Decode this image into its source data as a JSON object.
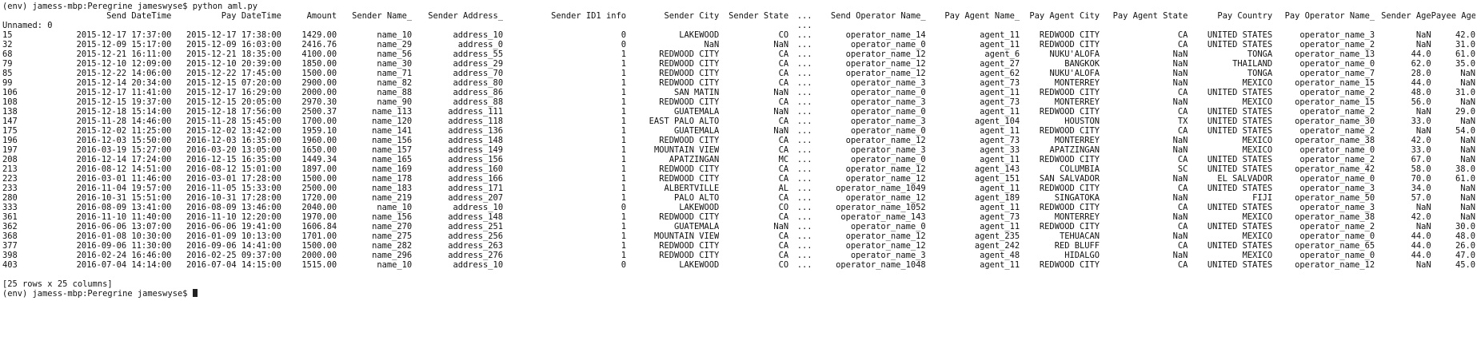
{
  "terminal": {
    "command_line": "(env) jamess-mbp:Peregrine jameswyse$ python aml.py",
    "unnamed_line": "Unnamed: 0",
    "footer": "[25 rows x 25 columns]",
    "next_prompt": "(env) jamess-mbp:Peregrine jameswyse$ "
  },
  "table": {
    "columns": [
      "",
      "Send DateTime",
      "Pay DateTime",
      "Amount",
      "Sender Name_",
      "Sender Address_",
      "Sender ID1 info",
      "Sender City",
      "Sender State",
      "...",
      "Send Operator Name_",
      "Pay Agent Name_",
      "Pay Agent City",
      "Pay Agent State",
      "Pay Country",
      "Pay Operator Name_",
      "Sender Age",
      "Payee Age"
    ],
    "header_ellipsis_second_line": "...",
    "rows": [
      [
        "15",
        "2015-12-17 17:37:00",
        "2015-12-17 17:38:00",
        "1429.00",
        "name_10",
        "address_10",
        "0",
        "LAKEWOOD",
        "CO",
        "...",
        "operator_name_14",
        "agent_11",
        "REDWOOD CITY",
        "CA",
        "UNITED STATES",
        "operator_name_3",
        "NaN",
        "42.0"
      ],
      [
        "32",
        "2015-12-09 15:17:00",
        "2015-12-09 16:03:00",
        "2416.76",
        "name_29",
        "address_0",
        "0",
        "NaN",
        "NaN",
        "...",
        "operator_name_0",
        "agent_11",
        "REDWOOD CITY",
        "CA",
        "UNITED STATES",
        "operator_name_2",
        "NaN",
        "31.0"
      ],
      [
        "68",
        "2015-12-21 16:11:00",
        "2015-12-21 18:35:00",
        "4100.00",
        "name_56",
        "address_55",
        "1",
        "REDWOOD CITY",
        "CA",
        "...",
        "operator_name_12",
        "agent_6",
        "NUKU'ALOFA",
        "NaN",
        "TONGA",
        "operator_name_13",
        "44.0",
        "61.0"
      ],
      [
        "79",
        "2015-12-10 12:09:00",
        "2015-12-10 20:39:00",
        "1850.00",
        "name_30",
        "address_29",
        "1",
        "REDWOOD CITY",
        "CA",
        "...",
        "operator_name_12",
        "agent_27",
        "BANGKOK",
        "NaN",
        "THAILAND",
        "operator_name_0",
        "62.0",
        "35.0"
      ],
      [
        "85",
        "2015-12-22 14:06:00",
        "2015-12-22 17:45:00",
        "1500.00",
        "name_71",
        "address_70",
        "1",
        "REDWOOD CITY",
        "CA",
        "...",
        "operator_name_12",
        "agent_62",
        "NUKU'ALOFA",
        "NaN",
        "TONGA",
        "operator_name_7",
        "28.0",
        "NaN"
      ],
      [
        "99",
        "2015-12-14 20:34:00",
        "2015-12-15 07:20:00",
        "2900.00",
        "name_82",
        "address_80",
        "1",
        "REDWOOD CITY",
        "CA",
        "...",
        "operator_name_3",
        "agent_73",
        "MONTERREY",
        "NaN",
        "MEXICO",
        "operator_name_15",
        "44.0",
        "NaN"
      ],
      [
        "106",
        "2015-12-17 11:41:00",
        "2015-12-17 16:29:00",
        "2000.00",
        "name_88",
        "address_86",
        "1",
        "SAN MATIN",
        "NaN",
        "...",
        "operator_name_0",
        "agent_11",
        "REDWOOD CITY",
        "CA",
        "UNITED STATES",
        "operator_name_2",
        "48.0",
        "31.0"
      ],
      [
        "108",
        "2015-12-15 19:37:00",
        "2015-12-15 20:05:00",
        "2970.30",
        "name_90",
        "address_88",
        "1",
        "REDWOOD CITY",
        "CA",
        "...",
        "operator_name_3",
        "agent_73",
        "MONTERREY",
        "NaN",
        "MEXICO",
        "operator_name_15",
        "56.0",
        "NaN"
      ],
      [
        "138",
        "2015-12-18 15:14:00",
        "2015-12-18 17:56:00",
        "2500.37",
        "name_113",
        "address_111",
        "1",
        "GUATEMALA",
        "NaN",
        "...",
        "operator_name_0",
        "agent_11",
        "REDWOOD CITY",
        "CA",
        "UNITED STATES",
        "operator_name_2",
        "NaN",
        "29.0"
      ],
      [
        "147",
        "2015-11-28 14:46:00",
        "2015-11-28 15:45:00",
        "1700.00",
        "name_120",
        "address_118",
        "1",
        "EAST PALO ALTO",
        "CA",
        "...",
        "operator_name_3",
        "agent_104",
        "HOUSTON",
        "TX",
        "UNITED STATES",
        "operator_name_30",
        "33.0",
        "NaN"
      ],
      [
        "175",
        "2015-12-02 11:25:00",
        "2015-12-02 13:42:00",
        "1959.10",
        "name_141",
        "address_136",
        "1",
        "GUATEMALA",
        "NaN",
        "...",
        "operator_name_0",
        "agent_11",
        "REDWOOD CITY",
        "CA",
        "UNITED STATES",
        "operator_name_2",
        "NaN",
        "54.0"
      ],
      [
        "196",
        "2016-12-03 15:50:00",
        "2016-12-03 16:35:00",
        "1960.00",
        "name_156",
        "address_148",
        "1",
        "REDWOOD CITY",
        "CA",
        "...",
        "operator_name_12",
        "agent_73",
        "MONTERREY",
        "NaN",
        "MEXICO",
        "operator_name_38",
        "42.0",
        "NaN"
      ],
      [
        "197",
        "2016-03-19 15:27:00",
        "2016-03-20 13:05:00",
        "1650.00",
        "name_157",
        "address_149",
        "1",
        "MOUNTAIN VIEW",
        "CA",
        "...",
        "operator_name_3",
        "agent_33",
        "APATZINGAN",
        "NaN",
        "MEXICO",
        "operator_name_0",
        "33.0",
        "NaN"
      ],
      [
        "208",
        "2016-12-14 17:24:00",
        "2016-12-15 16:35:00",
        "1449.34",
        "name_165",
        "address_156",
        "1",
        "APATZINGAN",
        "MC",
        "...",
        "operator_name_0",
        "agent_11",
        "REDWOOD CITY",
        "CA",
        "UNITED STATES",
        "operator_name_2",
        "67.0",
        "NaN"
      ],
      [
        "213",
        "2016-08-12 14:51:00",
        "2016-08-12 15:01:00",
        "1897.00",
        "name_169",
        "address_160",
        "1",
        "REDWOOD CITY",
        "CA",
        "...",
        "operator_name_12",
        "agent_143",
        "COLUMBIA",
        "SC",
        "UNITED STATES",
        "operator_name_42",
        "58.0",
        "38.0"
      ],
      [
        "223",
        "2016-03-01 11:46:00",
        "2016-03-01 17:28:00",
        "1500.00",
        "name_178",
        "address_166",
        "1",
        "REDWOOD CITY",
        "CA",
        "...",
        "operator_name_12",
        "agent_151",
        "SAN SALVADOR",
        "NaN",
        "EL SALVADOR",
        "operator_name_0",
        "70.0",
        "61.0"
      ],
      [
        "233",
        "2016-11-04 19:57:00",
        "2016-11-05 15:33:00",
        "2500.00",
        "name_183",
        "address_171",
        "1",
        "ALBERTVILLE",
        "AL",
        "...",
        "operator_name_1049",
        "agent_11",
        "REDWOOD CITY",
        "CA",
        "UNITED STATES",
        "operator_name_3",
        "34.0",
        "NaN"
      ],
      [
        "280",
        "2016-10-31 15:51:00",
        "2016-10-31 17:28:00",
        "1720.00",
        "name_219",
        "address_207",
        "1",
        "PALO ALTO",
        "CA",
        "...",
        "operator_name_12",
        "agent_189",
        "SINGATOKA",
        "NaN",
        "FIJI",
        "operator_name_50",
        "57.0",
        "NaN"
      ],
      [
        "333",
        "2016-08-09 13:41:00",
        "2016-08-09 13:46:00",
        "2040.00",
        "name_10",
        "address_10",
        "0",
        "LAKEWOOD",
        "CO",
        "...",
        "operator_name_1052",
        "agent_11",
        "REDWOOD CITY",
        "CA",
        "UNITED STATES",
        "operator_name_3",
        "NaN",
        "NaN"
      ],
      [
        "361",
        "2016-11-10 11:40:00",
        "2016-11-10 12:20:00",
        "1970.00",
        "name_156",
        "address_148",
        "1",
        "REDWOOD CITY",
        "CA",
        "...",
        "operator_name_143",
        "agent_73",
        "MONTERREY",
        "NaN",
        "MEXICO",
        "operator_name_38",
        "42.0",
        "NaN"
      ],
      [
        "362",
        "2016-06-06 13:07:00",
        "2016-06-06 19:41:00",
        "1606.84",
        "name_270",
        "address_251",
        "1",
        "GUATEMALA",
        "NaN",
        "...",
        "operator_name_0",
        "agent_11",
        "REDWOOD CITY",
        "CA",
        "UNITED STATES",
        "operator_name_2",
        "NaN",
        "30.0"
      ],
      [
        "368",
        "2016-01-08 10:30:00",
        "2016-01-09 10:13:00",
        "1701.00",
        "name_275",
        "address_256",
        "1",
        "MOUNTAIN VIEW",
        "CA",
        "...",
        "operator_name_12",
        "agent_235",
        "TEHUACAN",
        "NaN",
        "MEXICO",
        "operator_name_0",
        "44.0",
        "48.0"
      ],
      [
        "377",
        "2016-09-06 11:30:00",
        "2016-09-06 14:41:00",
        "1500.00",
        "name_282",
        "address_263",
        "1",
        "REDWOOD CITY",
        "CA",
        "...",
        "operator_name_12",
        "agent_242",
        "RED BLUFF",
        "CA",
        "UNITED STATES",
        "operator_name_65",
        "44.0",
        "26.0"
      ],
      [
        "398",
        "2016-02-24 16:46:00",
        "2016-02-25 09:37:00",
        "2000.00",
        "name_296",
        "address_276",
        "1",
        "REDWOOD CITY",
        "CA",
        "...",
        "operator_name_3",
        "agent_48",
        "HIDALGO",
        "NaN",
        "MEXICO",
        "operator_name_0",
        "44.0",
        "47.0"
      ],
      [
        "403",
        "2016-07-04 14:14:00",
        "2016-07-04 14:15:00",
        "1515.00",
        "name_10",
        "address_10",
        "0",
        "LAKEWOOD",
        "CO",
        "...",
        "operator_name_1048",
        "agent_11",
        "REDWOOD CITY",
        "CA",
        "UNITED STATES",
        "operator_name_12",
        "NaN",
        "45.0"
      ]
    ]
  }
}
